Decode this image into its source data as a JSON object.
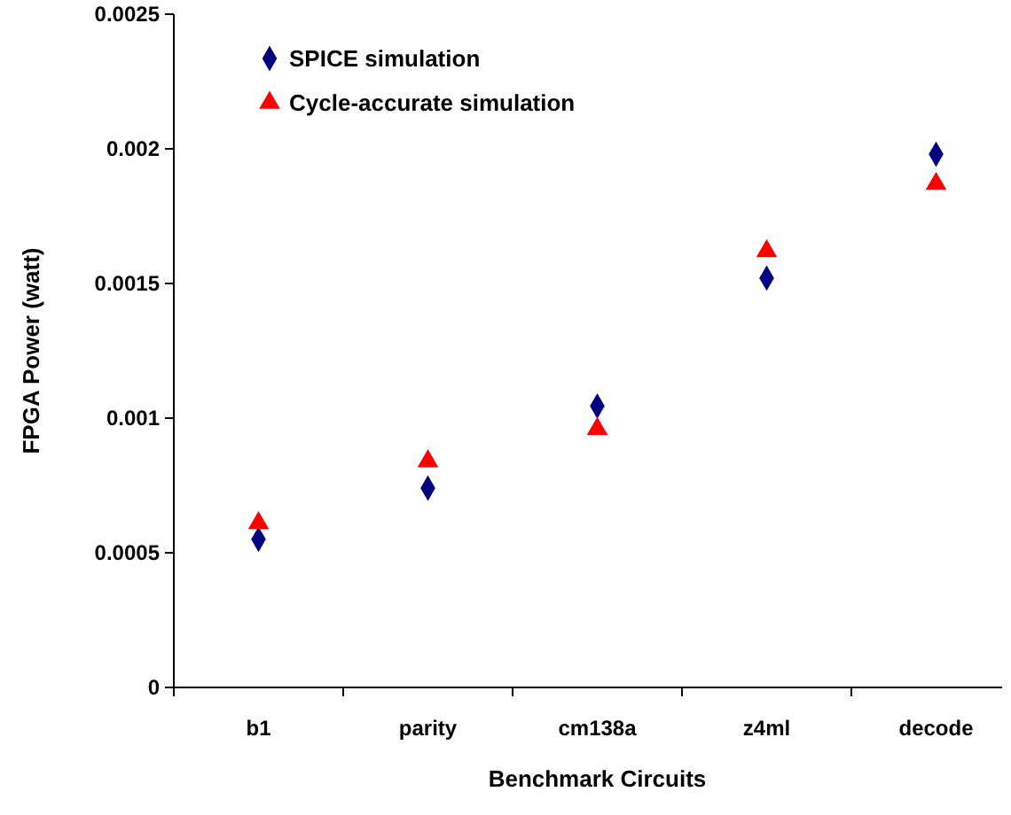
{
  "chart_data": {
    "type": "scatter",
    "xlabel": "Benchmark Circuits",
    "ylabel": "FPGA Power (watt)",
    "categories": [
      "b1",
      "parity",
      "cm138a",
      "z4ml",
      "decode"
    ],
    "ylim": [
      0,
      0.0025
    ],
    "yticks": [
      0,
      0.0005,
      0.001,
      0.0015,
      0.002,
      0.0025
    ],
    "grid": false,
    "legend": "top left",
    "series": [
      {
        "name": "SPICE simulation",
        "color": "#000080",
        "marker": "diamond",
        "values": [
          0.00055,
          0.00074,
          0.001045,
          0.00152,
          0.00198
        ]
      },
      {
        "name": "Cycle-accurate simulation",
        "color": "#ff0000",
        "marker": "triangle",
        "values": [
          0.00061,
          0.00084,
          0.00096,
          0.00162,
          0.00187
        ]
      }
    ]
  }
}
